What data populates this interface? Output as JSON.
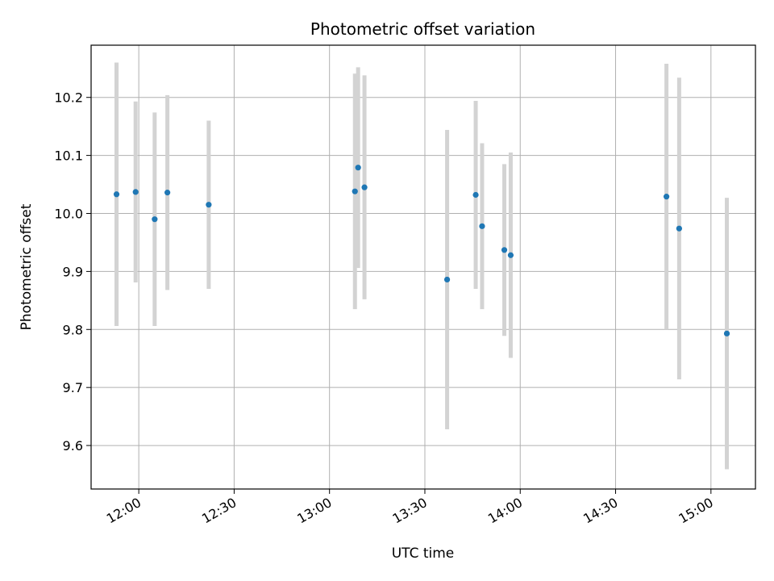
{
  "chart_data": {
    "type": "scatter",
    "title": "Photometric offset variation",
    "xlabel": "UTC time",
    "ylabel": "Photometric offset",
    "x_axis_type": "time",
    "xlim": [
      "11:45",
      "15:14"
    ],
    "ylim": [
      9.525,
      10.29
    ],
    "x_ticks": [
      "12:00",
      "12:30",
      "13:00",
      "13:30",
      "14:00",
      "14:30",
      "15:00"
    ],
    "y_ticks": [
      9.6,
      9.7,
      9.8,
      9.9,
      10.0,
      10.1,
      10.2
    ],
    "y_tick_labels": [
      "9.6",
      "9.7",
      "9.8",
      "9.9",
      "10.0",
      "10.1",
      "10.2"
    ],
    "grid": true,
    "point_color": "#1f77b4",
    "errorbar_color": "#d3d3d3",
    "points": [
      {
        "x": "11:53",
        "y": 10.033,
        "err": 0.227
      },
      {
        "x": "11:53",
        "y": 10.033,
        "err": 0.227
      },
      {
        "x": "11:59",
        "y": 10.037,
        "err": 0.156
      },
      {
        "x": "12:05",
        "y": 9.99,
        "err": 0.184
      },
      {
        "x": "12:09",
        "y": 10.036,
        "err": 0.168
      },
      {
        "x": "12:22",
        "y": 10.015,
        "err": 0.145
      },
      {
        "x": "13:08",
        "y": 10.038,
        "err": 0.203
      },
      {
        "x": "13:09",
        "y": 10.079,
        "err": 0.173
      },
      {
        "x": "13:11",
        "y": 10.045,
        "err": 0.193
      },
      {
        "x": "13:37",
        "y": 9.886,
        "err": 0.258
      },
      {
        "x": "13:46",
        "y": 10.032,
        "err": 0.162
      },
      {
        "x": "13:48",
        "y": 9.978,
        "err": 0.143
      },
      {
        "x": "13:55",
        "y": 9.937,
        "err": 0.148
      },
      {
        "x": "13:57",
        "y": 9.928,
        "err": 0.177
      },
      {
        "x": "14:46",
        "y": 10.029,
        "err": 0.229
      },
      {
        "x": "14:50",
        "y": 9.974,
        "err": 0.26
      },
      {
        "x": "15:05",
        "y": 9.793,
        "err": 0.234
      }
    ]
  }
}
